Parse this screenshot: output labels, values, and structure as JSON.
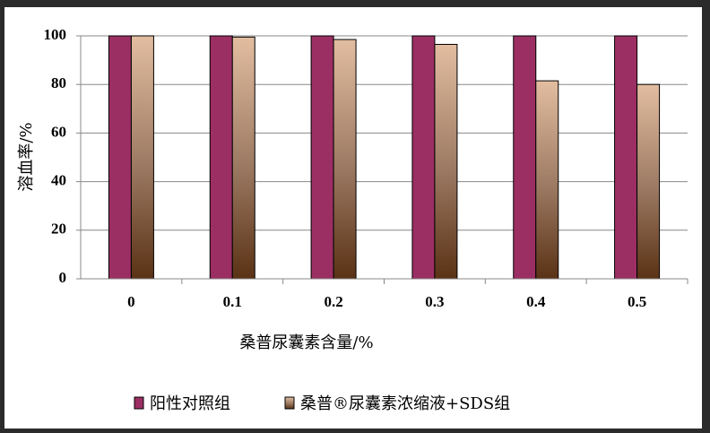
{
  "chart_data": {
    "type": "bar",
    "ylabel": "溶血率/%",
    "xlabel": "桑普尿囊素含量/%",
    "categories": [
      "0",
      "0.1",
      "0.2",
      "0.3",
      "0.4",
      "0.5"
    ],
    "series": [
      {
        "name": "阳性对照组",
        "color": "#9b2f63",
        "values": [
          100,
          100,
          100,
          100,
          100,
          100
        ]
      },
      {
        "name": "桑普®尿囊素浓缩液+SDS组",
        "color": "#e2bda0",
        "values": [
          100,
          99.5,
          98.5,
          96.5,
          81.5,
          80
        ]
      }
    ],
    "ylim": [
      0,
      100
    ],
    "yticks": [
      0,
      20,
      40,
      60,
      80,
      100
    ],
    "grid": true
  }
}
